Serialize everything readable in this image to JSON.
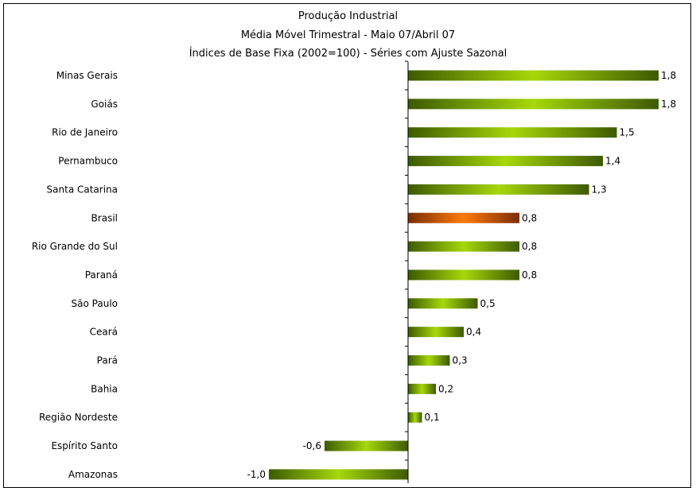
{
  "chart_data": {
    "type": "bar",
    "orientation": "horizontal",
    "title": "Produção Industrial",
    "subtitle_lines": [
      "Média Móvel Trimestral - Maio 07/Abril 07",
      "Índices de Base Fixa (2002=100) - Séries com Ajuste Sazonal"
    ],
    "categories": [
      "Minas Gerais",
      "Goiás",
      "Rio de Janeiro",
      "Pernambuco",
      "Santa Catarina",
      "Brasil",
      "Rio Grande do Sul",
      "Paraná",
      "São Paulo",
      "Ceará",
      "Pará",
      "Bahia",
      "Região Nordeste",
      "Espírito Santo",
      "Amazonas"
    ],
    "values": [
      1.8,
      1.8,
      1.5,
      1.4,
      1.3,
      0.8,
      0.8,
      0.8,
      0.5,
      0.4,
      0.3,
      0.2,
      0.1,
      -0.6,
      -1.0
    ],
    "value_labels": [
      "1,8",
      "1,8",
      "1,5",
      "1,4",
      "1,3",
      "0,8",
      "0,8",
      "0,8",
      "0,5",
      "0,4",
      "0,3",
      "0,2",
      "0,1",
      "-0,6",
      "-1,0"
    ],
    "highlight_category": "Brasil",
    "colors": {
      "bar_dark": "#3d5a00",
      "bar_light": "#a6d80a",
      "highlight_dark": "#7a2e00",
      "highlight_light": "#ff7a0a",
      "axis": "#000000"
    },
    "grid": false,
    "legend": "none"
  }
}
